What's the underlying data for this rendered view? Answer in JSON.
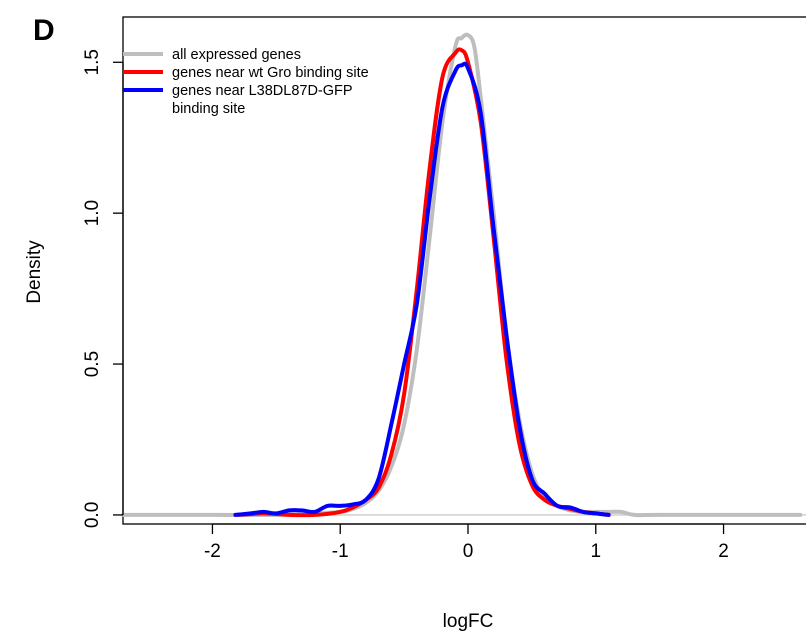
{
  "panel_label": "D",
  "chart_data": {
    "type": "line",
    "xlabel": "logFC",
    "ylabel": "Density",
    "xlim": [
      -2.7,
      2.7
    ],
    "ylim": [
      -0.03,
      1.65
    ],
    "x_ticks": [
      -2,
      -1,
      0,
      1,
      2
    ],
    "x_tick_labels": [
      "-2",
      "-1",
      "0",
      "1",
      "2"
    ],
    "y_ticks": [
      0.0,
      0.5,
      1.0,
      1.5
    ],
    "y_tick_labels": [
      "0.0",
      "0.5",
      "1.0",
      "1.5"
    ],
    "grid": false,
    "legend_position": "top-left",
    "zero_line_color": "#cccccc",
    "series": [
      {
        "name": "all expressed genes",
        "color": "#bebebe",
        "x": [
          -2.7,
          -2.0,
          -1.5,
          -1.2,
          -1.0,
          -0.9,
          -0.8,
          -0.7,
          -0.6,
          -0.5,
          -0.4,
          -0.3,
          -0.2,
          -0.1,
          -0.05,
          0.0,
          0.05,
          0.1,
          0.2,
          0.3,
          0.4,
          0.5,
          0.6,
          0.7,
          0.8,
          0.9,
          1.0,
          1.1,
          1.2,
          1.3,
          1.5,
          2.0,
          2.6
        ],
        "y": [
          0.0,
          0.0,
          0.0,
          0.005,
          0.01,
          0.02,
          0.04,
          0.08,
          0.16,
          0.3,
          0.55,
          0.92,
          1.3,
          1.55,
          1.58,
          1.59,
          1.55,
          1.38,
          1.0,
          0.6,
          0.32,
          0.14,
          0.06,
          0.03,
          0.015,
          0.01,
          0.01,
          0.01,
          0.01,
          0.0,
          0.0,
          0.0,
          0.0
        ]
      },
      {
        "name": "genes near wt Gro binding site",
        "color": "#ff0000",
        "x": [
          -1.8,
          -1.6,
          -1.4,
          -1.2,
          -1.0,
          -0.9,
          -0.8,
          -0.7,
          -0.6,
          -0.5,
          -0.4,
          -0.3,
          -0.2,
          -0.1,
          -0.05,
          0.0,
          0.1,
          0.2,
          0.3,
          0.4,
          0.5,
          0.6,
          0.7,
          0.8,
          0.9,
          1.0,
          1.1
        ],
        "y": [
          0.0,
          0.005,
          0.0,
          0.0,
          0.01,
          0.025,
          0.05,
          0.09,
          0.2,
          0.4,
          0.75,
          1.15,
          1.45,
          1.53,
          1.54,
          1.5,
          1.3,
          0.92,
          0.52,
          0.24,
          0.1,
          0.05,
          0.03,
          0.02,
          0.01,
          0.005,
          0.0
        ]
      },
      {
        "name": "genes near L38DL87D-GFP binding site",
        "color": "#0000ff",
        "x": [
          -1.82,
          -1.7,
          -1.6,
          -1.5,
          -1.4,
          -1.3,
          -1.2,
          -1.1,
          -1.0,
          -0.9,
          -0.8,
          -0.7,
          -0.6,
          -0.5,
          -0.4,
          -0.3,
          -0.2,
          -0.1,
          -0.05,
          0.0,
          0.1,
          0.2,
          0.3,
          0.4,
          0.5,
          0.6,
          0.7,
          0.8,
          0.9,
          1.0,
          1.1
        ],
        "y": [
          0.0,
          0.005,
          0.01,
          0.005,
          0.015,
          0.015,
          0.01,
          0.03,
          0.03,
          0.035,
          0.05,
          0.12,
          0.3,
          0.5,
          0.7,
          1.05,
          1.35,
          1.47,
          1.49,
          1.48,
          1.33,
          0.95,
          0.6,
          0.3,
          0.12,
          0.07,
          0.03,
          0.025,
          0.01,
          0.005,
          0.0
        ]
      }
    ],
    "legend_labels": [
      [
        "all expressed genes"
      ],
      [
        "genes near wt Gro binding site"
      ],
      [
        "genes near L38DL87D-GFP",
        "binding site"
      ]
    ]
  }
}
